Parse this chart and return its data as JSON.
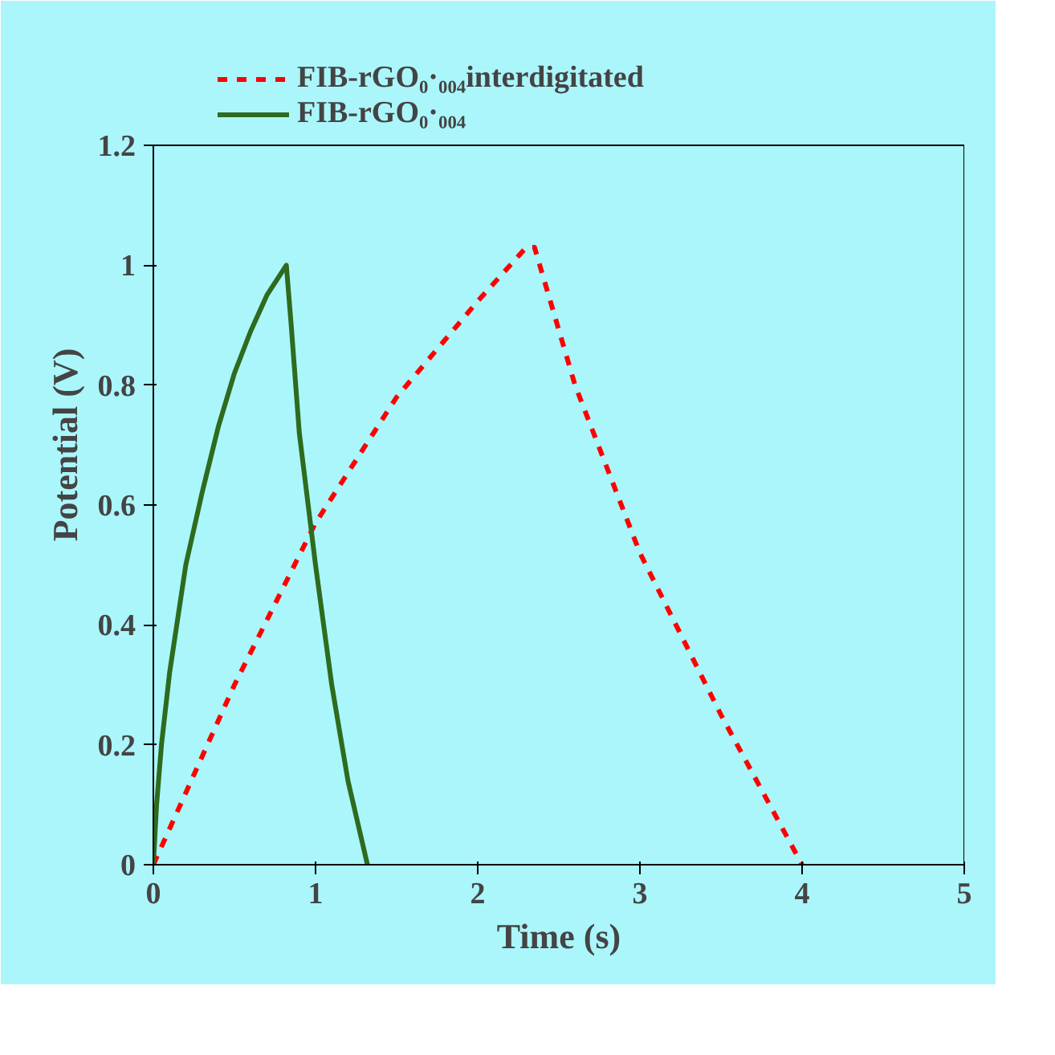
{
  "chart_data": {
    "type": "line",
    "xlabel": "Time (s)",
    "ylabel": "Potential (V)",
    "xlim": [
      0,
      5
    ],
    "ylim": [
      0,
      1.2
    ],
    "xticks": [
      0,
      1,
      2,
      3,
      4,
      5
    ],
    "yticks": [
      0,
      0.2,
      0.4,
      0.6,
      0.8,
      1,
      1.2
    ],
    "grid": false,
    "legend": "top",
    "marker": "none",
    "series": [
      {
        "name": "FIB-rGO₀·₀₀₄interdigitated",
        "color": "#ff0000",
        "line_style": "dashed",
        "x": [
          0,
          0.2,
          0.5,
          1.0,
          1.5,
          2.0,
          2.3,
          2.35,
          2.6,
          3.0,
          3.5,
          4.0
        ],
        "values": [
          0,
          0.12,
          0.3,
          0.57,
          0.78,
          0.94,
          1.03,
          1.03,
          0.8,
          0.52,
          0.25,
          0
        ]
      },
      {
        "name": "FIB-rGO₀·₀₀₄",
        "color": "#2e6b1e",
        "line_style": "solid",
        "x": [
          0,
          0.02,
          0.05,
          0.1,
          0.2,
          0.3,
          0.4,
          0.5,
          0.6,
          0.7,
          0.82,
          0.85,
          0.9,
          1.0,
          1.1,
          1.2,
          1.32
        ],
        "values": [
          0,
          0.1,
          0.2,
          0.32,
          0.5,
          0.62,
          0.73,
          0.82,
          0.89,
          0.95,
          1.0,
          0.9,
          0.72,
          0.5,
          0.3,
          0.14,
          0
        ]
      }
    ]
  }
}
